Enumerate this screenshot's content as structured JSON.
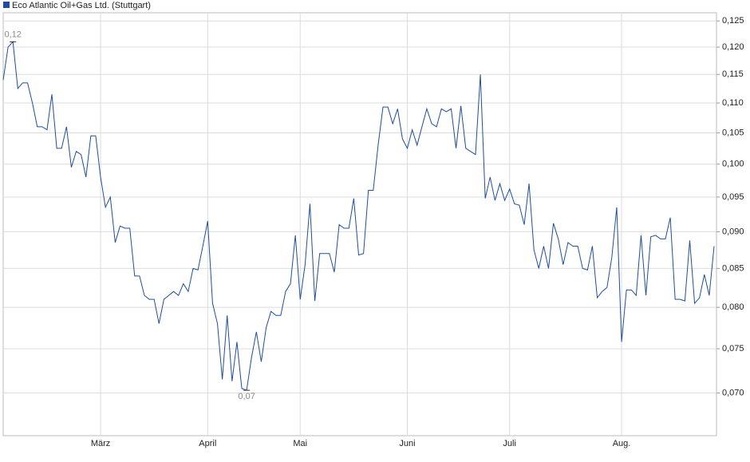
{
  "chart_data": {
    "type": "line",
    "title": "Eco Atlantic Oil+Gas Ltd. (Stuttgart)",
    "log_scale": true,
    "grid": true,
    "legend": "top-left",
    "xlim": [
      0,
      146
    ],
    "xticks": [
      {
        "value": 20,
        "label": "März"
      },
      {
        "value": 42,
        "label": "April"
      },
      {
        "value": 61,
        "label": "Mai"
      },
      {
        "value": 83,
        "label": "Juni"
      },
      {
        "value": 104,
        "label": "Juli"
      },
      {
        "value": 127,
        "label": "Aug."
      }
    ],
    "ylim": [
      0.0655,
      0.1266
    ],
    "yticks": [
      {
        "value": 0.07,
        "label": "0,070"
      },
      {
        "value": 0.075,
        "label": "0,075"
      },
      {
        "value": 0.08,
        "label": "0,080"
      },
      {
        "value": 0.085,
        "label": "0,085"
      },
      {
        "value": 0.09,
        "label": "0,090"
      },
      {
        "value": 0.095,
        "label": "0,095"
      },
      {
        "value": 0.1,
        "label": "0,100"
      },
      {
        "value": 0.105,
        "label": "0,105"
      },
      {
        "value": 0.11,
        "label": "0,110"
      },
      {
        "value": 0.115,
        "label": "0,115"
      },
      {
        "value": 0.12,
        "label": "0,120"
      },
      {
        "value": 0.125,
        "label": "0,125"
      }
    ],
    "annotations": [
      {
        "x": 2,
        "y": 0.121,
        "label": "0,12"
      },
      {
        "x": 50,
        "y": 0.0703,
        "label": "0,07"
      }
    ],
    "series": [
      {
        "name": "Eco Atlantic Oil+Gas Ltd. (Stuttgart)",
        "color": "#1f4e9c",
        "values": [
          0.114,
          0.12,
          0.121,
          0.1125,
          0.1135,
          0.1135,
          0.11,
          0.106,
          0.106,
          0.1055,
          0.1115,
          0.1025,
          0.1025,
          0.106,
          0.0995,
          0.102,
          0.1015,
          0.098,
          0.1045,
          0.1045,
          0.098,
          0.0935,
          0.095,
          0.0885,
          0.0908,
          0.0905,
          0.0905,
          0.084,
          0.084,
          0.0815,
          0.081,
          0.081,
          0.078,
          0.081,
          0.0815,
          0.082,
          0.0815,
          0.083,
          0.082,
          0.085,
          0.0848,
          0.088,
          0.0915,
          0.0805,
          0.078,
          0.0715,
          0.079,
          0.0713,
          0.0758,
          0.0705,
          0.0703,
          0.074,
          0.077,
          0.0735,
          0.0775,
          0.0795,
          0.079,
          0.079,
          0.082,
          0.083,
          0.0895,
          0.081,
          0.0855,
          0.094,
          0.0808,
          0.087,
          0.087,
          0.087,
          0.0845,
          0.091,
          0.0905,
          0.0905,
          0.0948,
          0.0868,
          0.087,
          0.096,
          0.096,
          0.103,
          0.1093,
          0.1093,
          0.1065,
          0.109,
          0.104,
          0.1025,
          0.1055,
          0.103,
          0.106,
          0.109,
          0.1065,
          0.106,
          0.109,
          0.1085,
          0.109,
          0.1025,
          0.1095,
          0.1025,
          0.102,
          0.1015,
          0.115,
          0.0948,
          0.098,
          0.0945,
          0.097,
          0.0945,
          0.0962,
          0.094,
          0.0938,
          0.091,
          0.097,
          0.0875,
          0.085,
          0.088,
          0.085,
          0.0912,
          0.089,
          0.0855,
          0.0885,
          0.088,
          0.088,
          0.085,
          0.0848,
          0.088,
          0.0812,
          0.082,
          0.0825,
          0.0865,
          0.0935,
          0.0758,
          0.0822,
          0.0822,
          0.0815,
          0.0895,
          0.0815,
          0.0893,
          0.0895,
          0.089,
          0.089,
          0.092,
          0.081,
          0.081,
          0.0808,
          0.0888,
          0.0805,
          0.0812,
          0.0842,
          0.0815,
          0.088
        ]
      }
    ]
  }
}
